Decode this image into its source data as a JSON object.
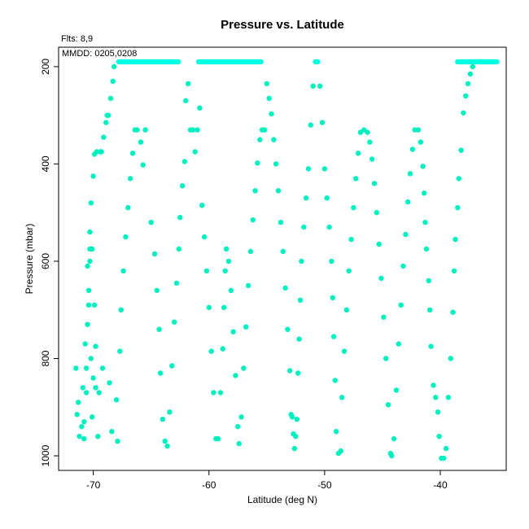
{
  "chart_data": {
    "type": "scatter",
    "title": "Pressure vs. Latitude",
    "xlabel": "Latitude (deg N)",
    "ylabel": "Pressure (mbar)",
    "annotations": [
      "Flts: 8,9",
      "MMDD: 0205,0208"
    ],
    "xlim": [
      -73,
      -34.3
    ],
    "ylim": [
      1030,
      160
    ],
    "y_reversed": true,
    "x_ticks": [
      -70,
      -60,
      -50,
      -40
    ],
    "y_ticks": [
      200,
      400,
      600,
      800,
      1000
    ],
    "grid": false,
    "legend": "none",
    "point_colors": [
      "#00f0c0",
      "#00ffe0"
    ],
    "series": [
      {
        "points": [
          [
            -71.5,
            820
          ],
          [
            -71.4,
            915
          ],
          [
            -71.3,
            890
          ],
          [
            -71.2,
            960
          ],
          [
            -71.0,
            940
          ],
          [
            -70.9,
            860
          ],
          [
            -70.8,
            930
          ],
          [
            -70.8,
            965
          ],
          [
            -70.7,
            770
          ],
          [
            -70.6,
            870
          ],
          [
            -70.6,
            820
          ],
          [
            -70.5,
            730
          ],
          [
            -70.5,
            610
          ],
          [
            -70.4,
            690
          ],
          [
            -70.4,
            660
          ],
          [
            -70.3,
            540
          ],
          [
            -70.3,
            600
          ],
          [
            -70.3,
            575
          ],
          [
            -70.2,
            480
          ],
          [
            -70.2,
            800
          ],
          [
            -70.1,
            920
          ],
          [
            -70.1,
            575
          ],
          [
            -70.0,
            425
          ],
          [
            -70.0,
            840
          ],
          [
            -69.9,
            380
          ],
          [
            -69.9,
            690
          ],
          [
            -69.8,
            775
          ],
          [
            -69.8,
            860
          ],
          [
            -69.7,
            375
          ],
          [
            -69.6,
            960
          ],
          [
            -69.5,
            870
          ],
          [
            -69.4,
            375
          ],
          [
            -69.3,
            375
          ],
          [
            -69.2,
            820
          ],
          [
            -69.1,
            345
          ],
          [
            -68.9,
            315
          ],
          [
            -68.8,
            300
          ],
          [
            -68.7,
            300
          ],
          [
            -68.6,
            850
          ],
          [
            -68.5,
            265
          ],
          [
            -68.4,
            950
          ],
          [
            -68.3,
            230
          ],
          [
            -68.2,
            200
          ],
          [
            -68.0,
            885
          ],
          [
            -67.9,
            970
          ],
          [
            -67.7,
            785
          ],
          [
            -67.6,
            700
          ],
          [
            -67.4,
            620
          ],
          [
            -67.2,
            550
          ],
          [
            -67.0,
            490
          ],
          [
            -66.8,
            430
          ],
          [
            -66.6,
            378
          ],
          [
            -66.4,
            330
          ],
          [
            -66.2,
            330
          ],
          [
            -65.9,
            355
          ],
          [
            -65.7,
            402
          ],
          [
            -65.5,
            330
          ],
          [
            -65.0,
            520
          ],
          [
            -64.7,
            585
          ],
          [
            -64.5,
            660
          ],
          [
            -64.3,
            740
          ],
          [
            -64.2,
            830
          ],
          [
            -64.0,
            925
          ],
          [
            -63.8,
            970
          ],
          [
            -63.6,
            980
          ],
          [
            -63.4,
            910
          ],
          [
            -63.2,
            815
          ],
          [
            -63.0,
            725
          ],
          [
            -62.8,
            645
          ],
          [
            -62.6,
            575
          ],
          [
            -62.5,
            510
          ],
          [
            -62.3,
            445
          ],
          [
            -62.1,
            395
          ],
          [
            -62.0,
            270
          ],
          [
            -61.8,
            235
          ],
          [
            -61.6,
            330
          ],
          [
            -61.4,
            330
          ],
          [
            -61.2,
            375
          ],
          [
            -61.0,
            330
          ],
          [
            -60.8,
            285
          ],
          [
            -60.6,
            485
          ],
          [
            -60.4,
            550
          ],
          [
            -60.2,
            620
          ],
          [
            -60.0,
            695
          ],
          [
            -59.8,
            785
          ],
          [
            -59.6,
            870
          ],
          [
            -59.4,
            965
          ],
          [
            -59.2,
            965
          ],
          [
            -59.0,
            870
          ],
          [
            -58.8,
            780
          ],
          [
            -58.7,
            695
          ],
          [
            -58.6,
            620
          ],
          [
            -58.5,
            575
          ],
          [
            -58.3,
            600
          ],
          [
            -58.1,
            660
          ],
          [
            -57.9,
            745
          ],
          [
            -57.7,
            835
          ],
          [
            -57.5,
            940
          ],
          [
            -57.4,
            975
          ],
          [
            -57.2,
            920
          ],
          [
            -57.0,
            820
          ],
          [
            -56.8,
            735
          ],
          [
            -56.6,
            650
          ],
          [
            -56.4,
            580
          ],
          [
            -56.2,
            515
          ],
          [
            -56.0,
            455
          ],
          [
            -55.8,
            398
          ],
          [
            -55.6,
            350
          ],
          [
            -55.4,
            330
          ],
          [
            -55.2,
            330
          ],
          [
            -55.0,
            235
          ],
          [
            -54.8,
            265
          ],
          [
            -54.6,
            297
          ],
          [
            -54.4,
            350
          ],
          [
            -54.2,
            400
          ],
          [
            -54.0,
            455
          ],
          [
            -53.8,
            520
          ],
          [
            -53.6,
            580
          ],
          [
            -53.4,
            655
          ],
          [
            -53.2,
            740
          ],
          [
            -53.0,
            825
          ],
          [
            -52.9,
            915
          ],
          [
            -52.8,
            920
          ],
          [
            -52.7,
            955
          ],
          [
            -52.6,
            985
          ],
          [
            -52.5,
            960
          ],
          [
            -52.4,
            925
          ],
          [
            -52.3,
            830
          ],
          [
            -52.2,
            760
          ],
          [
            -52.1,
            680
          ],
          [
            -52.0,
            600
          ],
          [
            -51.8,
            530
          ],
          [
            -51.6,
            470
          ],
          [
            -51.4,
            410
          ],
          [
            -51.2,
            320
          ],
          [
            -51.0,
            240
          ],
          [
            -50.8,
            190
          ],
          [
            -50.6,
            190
          ],
          [
            -50.4,
            240
          ],
          [
            -50.2,
            315
          ],
          [
            -50.0,
            410
          ],
          [
            -49.8,
            470
          ],
          [
            -49.6,
            530
          ],
          [
            -49.4,
            600
          ],
          [
            -49.3,
            675
          ],
          [
            -49.2,
            755
          ],
          [
            -49.1,
            845
          ],
          [
            -49.0,
            950
          ],
          [
            -48.8,
            995
          ],
          [
            -48.6,
            990
          ],
          [
            -48.5,
            880
          ],
          [
            -48.3,
            785
          ],
          [
            -48.1,
            700
          ],
          [
            -47.9,
            620
          ],
          [
            -47.7,
            555
          ],
          [
            -47.5,
            490
          ],
          [
            -47.3,
            430
          ],
          [
            -47.1,
            378
          ],
          [
            -46.9,
            335
          ],
          [
            -46.6,
            330
          ],
          [
            -46.3,
            335
          ],
          [
            -46.1,
            355
          ],
          [
            -45.9,
            390
          ],
          [
            -45.7,
            440
          ],
          [
            -45.5,
            500
          ],
          [
            -45.3,
            565
          ],
          [
            -45.1,
            635
          ],
          [
            -44.9,
            715
          ],
          [
            -44.7,
            800
          ],
          [
            -44.5,
            895
          ],
          [
            -44.3,
            995
          ],
          [
            -44.2,
            1000
          ],
          [
            -44.0,
            965
          ],
          [
            -43.8,
            865
          ],
          [
            -43.6,
            770
          ],
          [
            -43.4,
            690
          ],
          [
            -43.2,
            610
          ],
          [
            -43.0,
            545
          ],
          [
            -42.8,
            478
          ],
          [
            -42.6,
            420
          ],
          [
            -42.4,
            370
          ],
          [
            -42.2,
            330
          ],
          [
            -41.9,
            330
          ],
          [
            -41.7,
            355
          ],
          [
            -41.5,
            405
          ],
          [
            -41.4,
            460
          ],
          [
            -41.3,
            520
          ],
          [
            -41.2,
            575
          ],
          [
            -41.0,
            640
          ],
          [
            -40.9,
            700
          ],
          [
            -40.8,
            775
          ],
          [
            -40.6,
            855
          ],
          [
            -40.4,
            880
          ],
          [
            -40.2,
            910
          ],
          [
            -40.1,
            960
          ],
          [
            -39.9,
            1005
          ],
          [
            -39.7,
            1005
          ],
          [
            -39.5,
            985
          ],
          [
            -39.3,
            880
          ],
          [
            -39.1,
            800
          ],
          [
            -38.9,
            705
          ],
          [
            -38.8,
            620
          ],
          [
            -38.7,
            555
          ],
          [
            -38.5,
            490
          ],
          [
            -38.4,
            430
          ],
          [
            -38.2,
            372
          ],
          [
            -38.0,
            295
          ],
          [
            -37.8,
            260
          ],
          [
            -37.6,
            235
          ],
          [
            -37.4,
            215
          ],
          [
            -37.2,
            200
          ],
          [
            -37.0,
            190
          ],
          [
            -36.5,
            190
          ],
          [
            -36.0,
            190
          ],
          [
            -35.5,
            190
          ],
          [
            -35.1,
            190
          ]
        ]
      }
    ],
    "cap_segments": [
      {
        "x_from": -67.8,
        "x_to": -62.6,
        "y": 190
      },
      {
        "x_from": -60.9,
        "x_to": -55.5,
        "y": 190
      },
      {
        "x_from": -38.5,
        "x_to": -35.2,
        "y": 190
      }
    ]
  }
}
